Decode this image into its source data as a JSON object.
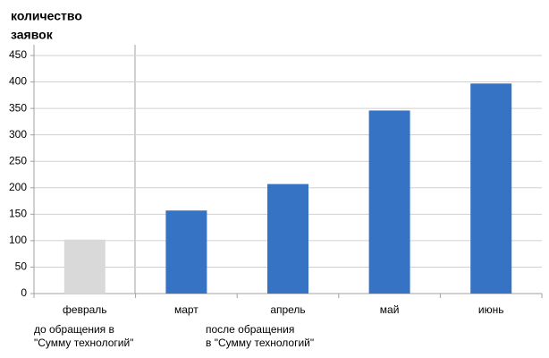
{
  "chart_data": {
    "type": "bar",
    "title": [
      "количество",
      "заявок"
    ],
    "categories": [
      "февраль",
      "март",
      "апрель",
      "май",
      "июнь"
    ],
    "values": [
      102,
      157,
      207,
      346,
      397
    ],
    "colors": [
      "#d9d9d9",
      "#3673c4",
      "#3673c4",
      "#3673c4",
      "#3673c4"
    ],
    "ylim": [
      0,
      450
    ],
    "yticks": [
      0,
      50,
      100,
      150,
      200,
      250,
      300,
      350,
      400,
      450
    ],
    "grid": true,
    "annotations": [
      [
        "до обращения в",
        "\"Сумму технологий\""
      ],
      [
        "после обращения",
        "в \"Сумму технологий\""
      ]
    ]
  }
}
